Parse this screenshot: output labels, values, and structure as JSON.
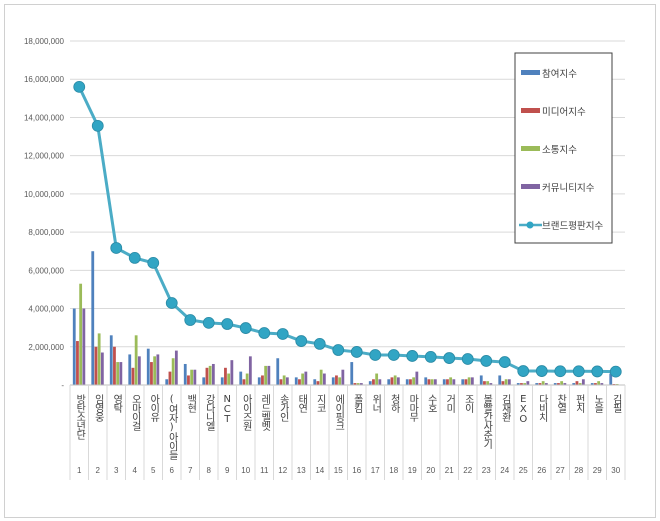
{
  "chart_data": {
    "type": "bar",
    "title": "",
    "xlabel": "",
    "ylabel": "",
    "ylim": [
      0,
      18000000
    ],
    "yticks": [
      "-",
      "2,000,000",
      "4,000,000",
      "6,000,000",
      "8,000,000",
      "10,000,000",
      "12,000,000",
      "14,000,000",
      "16,000,000",
      "18,000,000"
    ],
    "grid": true,
    "legend_position": "right",
    "categories": [
      "방탄소년단",
      "임영웅",
      "영탁",
      "오마이걸",
      "아이유",
      "(여자)아이들",
      "백현",
      "강다니엘",
      "NCT",
      "아이즈원",
      "레드벨벳",
      "송가인",
      "태연",
      "지코",
      "에이핑크",
      "폴킴",
      "위너",
      "청하",
      "마마무",
      "수호",
      "거미",
      "조이",
      "볼빨간사춘기",
      "김재환",
      "EXO",
      "다비치",
      "찬열",
      "펀치",
      "노을",
      "김필"
    ],
    "ranks": [
      "1",
      "2",
      "3",
      "4",
      "5",
      "6",
      "7",
      "8",
      "9",
      "10",
      "11",
      "12",
      "13",
      "14",
      "15",
      "16",
      "17",
      "18",
      "19",
      "20",
      "21",
      "22",
      "23",
      "24",
      "25",
      "26",
      "27",
      "28",
      "29",
      "30"
    ],
    "series": [
      {
        "name": "참여지수",
        "type": "bar",
        "color": "#4F81BD",
        "values": [
          4000000,
          7000000,
          2600000,
          1600000,
          1900000,
          300000,
          1100000,
          400000,
          400000,
          700000,
          400000,
          1400000,
          400000,
          300000,
          400000,
          1200000,
          200000,
          300000,
          300000,
          400000,
          300000,
          300000,
          500000,
          500000,
          100000,
          100000,
          100000,
          100000,
          100000,
          600000
        ]
      },
      {
        "name": "미디어지수",
        "type": "bar",
        "color": "#C0504D",
        "values": [
          2300000,
          2000000,
          2000000,
          900000,
          1200000,
          700000,
          500000,
          900000,
          900000,
          300000,
          500000,
          300000,
          300000,
          200000,
          500000,
          100000,
          300000,
          400000,
          300000,
          300000,
          300000,
          300000,
          200000,
          200000,
          100000,
          100000,
          100000,
          200000,
          100000,
          50000
        ]
      },
      {
        "name": "소통지수",
        "type": "bar",
        "color": "#9BBB59",
        "values": [
          5300000,
          2700000,
          1200000,
          2600000,
          1500000,
          1400000,
          800000,
          1000000,
          600000,
          600000,
          1000000,
          500000,
          600000,
          800000,
          400000,
          100000,
          600000,
          500000,
          400000,
          300000,
          400000,
          400000,
          200000,
          300000,
          100000,
          200000,
          200000,
          100000,
          200000,
          50000
        ]
      },
      {
        "name": "커뮤니티지수",
        "type": "bar",
        "color": "#8064A2",
        "values": [
          4000000,
          1700000,
          1200000,
          1500000,
          1600000,
          1800000,
          800000,
          1100000,
          1300000,
          1500000,
          1000000,
          400000,
          700000,
          600000,
          800000,
          100000,
          300000,
          400000,
          700000,
          300000,
          300000,
          400000,
          100000,
          300000,
          200000,
          100000,
          100000,
          300000,
          100000,
          20000
        ]
      },
      {
        "name": "브랜드평판지수",
        "type": "line",
        "color": "#4BACC6",
        "values": [
          15600000,
          13560000,
          7170000,
          6650000,
          6390000,
          4290000,
          3400000,
          3250000,
          3190000,
          2980000,
          2720000,
          2670000,
          2300000,
          2150000,
          1830000,
          1730000,
          1570000,
          1570000,
          1520000,
          1470000,
          1410000,
          1360000,
          1260000,
          1200000,
          730000,
          730000,
          720000,
          720000,
          710000,
          700000
        ]
      }
    ]
  }
}
